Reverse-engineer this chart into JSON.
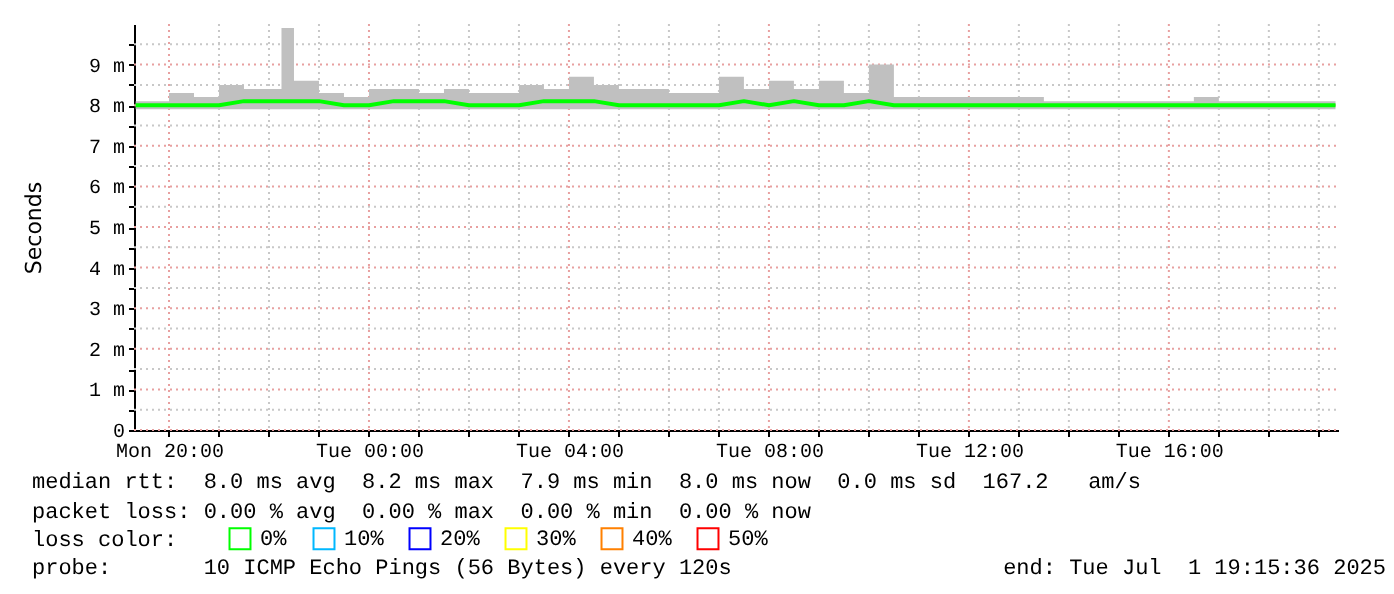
{
  "chart_data": {
    "type": "line",
    "ylabel": "Seconds",
    "x": [
      "2025-06-30T19:20",
      "2025-06-30T20:00",
      "2025-06-30T20:30",
      "2025-06-30T21:00",
      "2025-06-30T21:30",
      "2025-06-30T22:00",
      "2025-06-30T22:15",
      "2025-06-30T22:30",
      "2025-06-30T23:00",
      "2025-06-30T23:30",
      "2025-07-01T00:00",
      "2025-07-01T00:30",
      "2025-07-01T01:00",
      "2025-07-01T01:30",
      "2025-07-01T02:00",
      "2025-07-01T02:30",
      "2025-07-01T03:00",
      "2025-07-01T03:30",
      "2025-07-01T04:00",
      "2025-07-01T04:30",
      "2025-07-01T05:00",
      "2025-07-01T05:30",
      "2025-07-01T06:00",
      "2025-07-01T06:30",
      "2025-07-01T07:00",
      "2025-07-01T07:30",
      "2025-07-01T08:00",
      "2025-07-01T08:30",
      "2025-07-01T09:00",
      "2025-07-01T09:30",
      "2025-07-01T10:00",
      "2025-07-01T10:30",
      "2025-07-01T11:00",
      "2025-07-01T11:30",
      "2025-07-01T12:00",
      "2025-07-01T12:30",
      "2025-07-01T13:00",
      "2025-07-01T13:30",
      "2025-07-01T14:00",
      "2025-07-01T14:30",
      "2025-07-01T15:00",
      "2025-07-01T15:30",
      "2025-07-01T16:00",
      "2025-07-01T16:30",
      "2025-07-01T17:00",
      "2025-07-01T17:30",
      "2025-07-01T18:00",
      "2025-07-01T18:30",
      "2025-07-01T19:00",
      "2025-07-01T19:20"
    ],
    "series": [
      {
        "name": "0%",
        "color": "#00ff00",
        "values": [
          8.0,
          8.0,
          8.0,
          8.0,
          8.1,
          8.1,
          8.1,
          8.1,
          8.1,
          8.0,
          8.0,
          8.1,
          8.1,
          8.1,
          8.0,
          8.0,
          8.0,
          8.1,
          8.1,
          8.1,
          8.0,
          8.0,
          8.0,
          8.0,
          8.0,
          8.1,
          8.0,
          8.1,
          8.0,
          8.0,
          8.1,
          8.0,
          8.0,
          8.0,
          8.0,
          8.0,
          8.0,
          8.0,
          8.0,
          8.0,
          8.0,
          8.0,
          8.0,
          8.0,
          8.0,
          8.0,
          8.0,
          8.0,
          8.0,
          8.0
        ],
        "lower": [
          7.9,
          7.9,
          7.9,
          7.9,
          7.9,
          7.9,
          7.9,
          7.9,
          7.9,
          7.9,
          7.9,
          7.9,
          7.9,
          7.9,
          7.9,
          7.9,
          7.9,
          7.9,
          7.9,
          7.9,
          7.9,
          7.9,
          7.9,
          7.9,
          7.9,
          7.9,
          7.9,
          7.9,
          7.9,
          7.9,
          7.9,
          7.9,
          7.9,
          7.9,
          7.9,
          7.9,
          7.9,
          7.9,
          7.9,
          7.9,
          7.9,
          7.9,
          7.9,
          7.9,
          7.9,
          7.9,
          7.9,
          7.9,
          7.9,
          7.9
        ],
        "upper": [
          8.1,
          8.3,
          8.2,
          8.5,
          8.4,
          8.4,
          9.9,
          8.6,
          8.3,
          8.2,
          8.4,
          8.4,
          8.3,
          8.4,
          8.3,
          8.3,
          8.5,
          8.4,
          8.7,
          8.5,
          8.4,
          8.4,
          8.3,
          8.3,
          8.7,
          8.4,
          8.6,
          8.4,
          8.6,
          8.3,
          9.0,
          8.2,
          8.2,
          8.2,
          8.2,
          8.2,
          8.2,
          8.1,
          8.1,
          8.1,
          8.1,
          8.1,
          8.1,
          8.2,
          8.1,
          8.1,
          8.1,
          8.1,
          8.1,
          8.1
        ]
      },
      {
        "name": "10%",
        "color": "#00b8ff",
        "values": [
          null,
          null,
          null,
          null,
          null,
          null,
          null,
          null,
          null,
          null,
          null,
          null,
          null,
          null,
          null,
          null,
          null,
          null,
          null,
          null,
          null,
          null,
          null,
          null,
          null,
          null,
          null,
          null,
          null,
          null,
          null,
          null,
          null,
          null,
          null,
          null,
          null,
          null,
          null,
          null,
          null,
          null,
          null,
          null,
          null,
          null,
          null,
          null,
          null,
          null
        ]
      },
      {
        "name": "20%",
        "color": "#0000ff",
        "values": [
          null,
          null,
          null,
          null,
          null,
          null,
          null,
          null,
          null,
          null,
          null,
          null,
          null,
          null,
          null,
          null,
          null,
          null,
          null,
          null,
          null,
          null,
          null,
          null,
          null,
          null,
          null,
          null,
          null,
          null,
          null,
          null,
          null,
          null,
          null,
          null,
          null,
          null,
          null,
          null,
          null,
          null,
          null,
          null,
          null,
          null,
          null,
          null,
          null,
          null
        ]
      },
      {
        "name": "30%",
        "color": "#ffff00",
        "values": [
          null,
          null,
          null,
          null,
          null,
          null,
          null,
          null,
          null,
          null,
          null,
          null,
          null,
          null,
          null,
          null,
          null,
          null,
          null,
          null,
          null,
          null,
          null,
          null,
          null,
          null,
          null,
          null,
          null,
          null,
          null,
          null,
          null,
          null,
          null,
          null,
          null,
          null,
          null,
          null,
          null,
          null,
          null,
          null,
          null,
          null,
          null,
          null,
          null,
          null
        ]
      },
      {
        "name": "40%",
        "color": "#ff8000",
        "values": [
          null,
          null,
          null,
          null,
          null,
          null,
          null,
          null,
          null,
          null,
          null,
          null,
          null,
          null,
          null,
          null,
          null,
          null,
          null,
          null,
          null,
          null,
          null,
          null,
          null,
          null,
          null,
          null,
          null,
          null,
          null,
          null,
          null,
          null,
          null,
          null,
          null,
          null,
          null,
          null,
          null,
          null,
          null,
          null,
          null,
          null,
          null,
          null,
          null,
          null
        ]
      },
      {
        "name": "50%",
        "color": "#ff0000",
        "values": [
          null,
          null,
          null,
          null,
          null,
          null,
          null,
          null,
          null,
          null,
          null,
          null,
          null,
          null,
          null,
          null,
          null,
          null,
          null,
          null,
          null,
          null,
          null,
          null,
          null,
          null,
          null,
          null,
          null,
          null,
          null,
          null,
          null,
          null,
          null,
          null,
          null,
          null,
          null,
          null,
          null,
          null,
          null,
          null,
          null,
          null,
          null,
          null,
          null,
          null
        ]
      }
    ],
    "legend_title": "loss color:",
    "legend": "bottom left",
    "xlim": [
      "2025-06-30T19:18",
      "2025-07-01T19:23"
    ],
    "xticks": [
      {
        "value": "2025-06-30T20:00",
        "label": "Mon 20:00"
      },
      {
        "value": "2025-06-30T21:00",
        "label": null
      },
      {
        "value": "2025-06-30T22:00",
        "label": null
      },
      {
        "value": "2025-06-30T23:00",
        "label": null
      },
      {
        "value": "2025-07-01T00:00",
        "label": "Tue 00:00"
      },
      {
        "value": "2025-07-01T01:00",
        "label": null
      },
      {
        "value": "2025-07-01T02:00",
        "label": null
      },
      {
        "value": "2025-07-01T03:00",
        "label": null
      },
      {
        "value": "2025-07-01T04:00",
        "label": "Tue 04:00"
      },
      {
        "value": "2025-07-01T05:00",
        "label": null
      },
      {
        "value": "2025-07-01T06:00",
        "label": null
      },
      {
        "value": "2025-07-01T07:00",
        "label": null
      },
      {
        "value": "2025-07-01T08:00",
        "label": "Tue 08:00"
      },
      {
        "value": "2025-07-01T09:00",
        "label": null
      },
      {
        "value": "2025-07-01T10:00",
        "label": null
      },
      {
        "value": "2025-07-01T11:00",
        "label": null
      },
      {
        "value": "2025-07-01T12:00",
        "label": "Tue 12:00"
      },
      {
        "value": "2025-07-01T13:00",
        "label": null
      },
      {
        "value": "2025-07-01T14:00",
        "label": null
      },
      {
        "value": "2025-07-01T15:00",
        "label": null
      },
      {
        "value": "2025-07-01T16:00",
        "label": "Tue 16:00"
      },
      {
        "value": "2025-07-01T17:00",
        "label": null
      },
      {
        "value": "2025-07-01T18:00",
        "label": null
      },
      {
        "value": "2025-07-01T19:00",
        "label": null
      }
    ],
    "ylim": [
      0,
      10
    ],
    "yticks": [
      0,
      {
        "value": 0.5,
        "label": null
      },
      {
        "value": 1,
        "label": "1 m"
      },
      {
        "value": 1.5,
        "label": null
      },
      {
        "value": 2,
        "label": "2 m"
      },
      {
        "value": 2.5,
        "label": null
      },
      {
        "value": 3,
        "label": "3 m"
      },
      {
        "value": 3.5,
        "label": null
      },
      {
        "value": 4,
        "label": "4 m"
      },
      {
        "value": 4.5,
        "label": null
      },
      {
        "value": 5,
        "label": "5 m"
      },
      {
        "value": 5.5,
        "label": null
      },
      {
        "value": 6,
        "label": "6 m"
      },
      {
        "value": 6.5,
        "label": null
      },
      {
        "value": 7,
        "label": "7 m"
      },
      {
        "value": 7.5,
        "label": null
      },
      {
        "value": 8,
        "label": "8 m"
      },
      {
        "value": 8.5,
        "label": null
      },
      {
        "value": 9,
        "label": "9 m"
      },
      {
        "value": 9.5,
        "label": null
      }
    ],
    "grid": true,
    "line_style": "solid",
    "annotations": [
      "median rtt:  8.0 ms avg  8.2 ms max  7.9 ms min  8.0 ms now  0.0 ms sd  167.2   am/s",
      "packet loss: 0.00 % avg  0.00 % max  0.00 % min  0.00 % now",
      "probe:       10 ICMP Echo Pings (56 Bytes) every 120s",
      "end: Tue Jul  1 19:15:36 2025"
    ]
  }
}
